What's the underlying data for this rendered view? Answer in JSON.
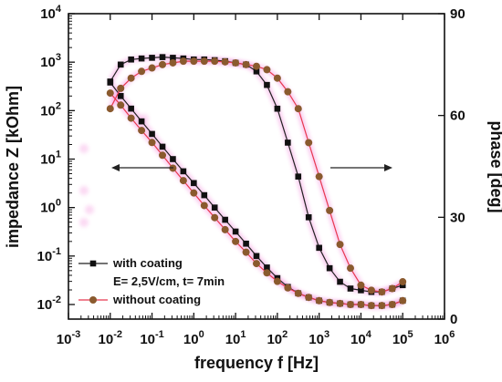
{
  "chart_data": {
    "type": "line",
    "xlabel": "frequency f [Hz]",
    "ylabel_left": "impedance Z [kOhm]",
    "ylabel_right": "phase [deg]",
    "x_scale": "log",
    "y_left_scale": "log",
    "xlim": [
      0.001,
      1000000
    ],
    "ylim_left": [
      0.005,
      10000
    ],
    "ylim_right": [
      0,
      90
    ],
    "x_ticks": [
      {
        "value": 0.001,
        "base": "10",
        "exp": "-3"
      },
      {
        "value": 0.01,
        "base": "10",
        "exp": "-2"
      },
      {
        "value": 0.1,
        "base": "10",
        "exp": "-1"
      },
      {
        "value": 1,
        "base": "10",
        "exp": "0"
      },
      {
        "value": 10,
        "base": "10",
        "exp": "1"
      },
      {
        "value": 100,
        "base": "10",
        "exp": "2"
      },
      {
        "value": 1000,
        "base": "10",
        "exp": "3"
      },
      {
        "value": 10000,
        "base": "10",
        "exp": "4"
      },
      {
        "value": 100000,
        "base": "10",
        "exp": "5"
      },
      {
        "value": 1000000,
        "base": "10",
        "exp": "6"
      }
    ],
    "y_left_ticks": [
      {
        "value": 0.01,
        "base": "10",
        "exp": "-2"
      },
      {
        "value": 0.1,
        "base": "10",
        "exp": "-1"
      },
      {
        "value": 1,
        "base": "10",
        "exp": "0"
      },
      {
        "value": 10,
        "base": "10",
        "exp": "1"
      },
      {
        "value": 100,
        "base": "10",
        "exp": "2"
      },
      {
        "value": 1000,
        "base": "10",
        "exp": "3"
      },
      {
        "value": 10000,
        "base": "10",
        "exp": "4"
      }
    ],
    "y_right_ticks": [
      {
        "value": 0,
        "label": "0"
      },
      {
        "value": 30,
        "label": "30"
      },
      {
        "value": 60,
        "label": "60"
      },
      {
        "value": 90,
        "label": "90"
      }
    ],
    "x": [
      0.01,
      0.0178,
      0.0316,
      0.0562,
      0.1,
      0.178,
      0.316,
      0.562,
      1,
      1.78,
      3.16,
      5.62,
      10,
      17.8,
      31.6,
      56.2,
      100,
      178,
      316,
      562,
      1000,
      1780,
      3160,
      5620,
      10000,
      17800,
      31600,
      56200,
      100000
    ],
    "series": [
      {
        "name": "with coating",
        "axis": "left",
        "color": "#111111",
        "marker": "square",
        "values": [
          380,
          200,
          110,
          60,
          33,
          18,
          10,
          5.6,
          3.2,
          1.8,
          1.0,
          0.56,
          0.32,
          0.18,
          0.1,
          0.058,
          0.035,
          0.023,
          0.017,
          0.014,
          0.012,
          0.011,
          0.0105,
          0.01,
          0.01,
          0.0095,
          0.0095,
          0.01,
          0.012
        ]
      },
      {
        "name": "with coating",
        "axis": "right",
        "color": "#111111",
        "marker": "square",
        "values": [
          70,
          75,
          76.5,
          76.8,
          77,
          77.2,
          77,
          76.8,
          76.5,
          76.5,
          76.3,
          76,
          75.5,
          75,
          73,
          69,
          62,
          52,
          42,
          30,
          21,
          15,
          11,
          9,
          8.5,
          8,
          8,
          9,
          10
        ]
      },
      {
        "name": "without coating",
        "axis": "left",
        "color": "#8a5a2e",
        "marker": "circle",
        "values": [
          230,
          130,
          70,
          39,
          22,
          12,
          6.5,
          3.6,
          2.0,
          1.1,
          0.62,
          0.35,
          0.2,
          0.12,
          0.07,
          0.045,
          0.03,
          0.022,
          0.017,
          0.014,
          0.012,
          0.011,
          0.0105,
          0.01,
          0.01,
          0.0095,
          0.0095,
          0.01,
          0.012
        ]
      },
      {
        "name": "without coating",
        "axis": "right",
        "color": "#8a5a2e",
        "marker": "circle",
        "values": [
          62,
          68,
          71,
          73,
          74,
          75,
          75.5,
          76,
          76,
          76,
          76,
          75.8,
          75.5,
          75,
          74.5,
          73.5,
          71,
          67,
          62,
          52,
          42,
          32,
          22,
          15,
          10,
          8.5,
          8,
          9,
          11
        ]
      }
    ],
    "legend": {
      "placement": "bottom-left",
      "entries": [
        {
          "label": "with coating",
          "color": "#111111",
          "marker": "square"
        },
        {
          "label": "E= 2,5V/cm, t= 7min",
          "color": "",
          "marker": "none"
        },
        {
          "label": "without coating",
          "color": "#8a5a2e",
          "marker": "circle"
        }
      ]
    },
    "annotations": [
      {
        "type": "arrow",
        "direction": "left",
        "meaning": "impedance axis"
      },
      {
        "type": "arrow",
        "direction": "right",
        "meaning": "phase axis"
      }
    ],
    "colors": {
      "with_coating": "#111111",
      "without_coating": "#8a5a2e",
      "line_highlight": "#e8384f",
      "glow": "#f06ad0"
    }
  }
}
